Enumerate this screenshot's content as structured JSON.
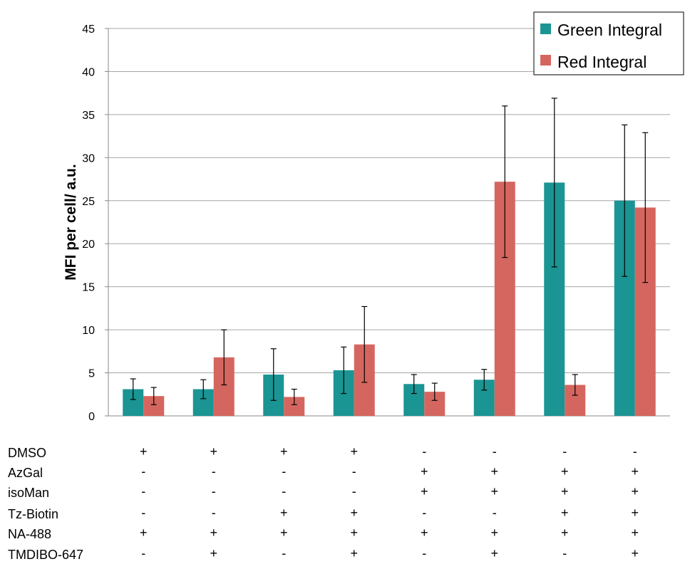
{
  "chart_data": {
    "type": "bar",
    "ylabel": "MFI per cell/ a.u.",
    "ylim": [
      0,
      45
    ],
    "yticks": [
      0,
      5,
      10,
      15,
      20,
      25,
      30,
      35,
      40,
      45
    ],
    "grid": true,
    "legend_position": "top-right",
    "groups": 8,
    "series": [
      {
        "name": "Green Integral",
        "color": "#1a9593",
        "values": [
          3.1,
          3.1,
          4.8,
          5.3,
          3.7,
          4.2,
          27.1,
          25.0
        ],
        "errors": [
          1.2,
          1.1,
          3.0,
          2.7,
          1.1,
          1.2,
          9.8,
          8.8
        ]
      },
      {
        "name": "Red Integral",
        "color": "#d5665f",
        "values": [
          2.3,
          6.8,
          2.2,
          8.3,
          2.8,
          27.2,
          3.6,
          24.2
        ],
        "errors": [
          1.0,
          3.2,
          0.9,
          4.4,
          1.0,
          8.8,
          1.2,
          8.7
        ]
      }
    ],
    "conditions": [
      {
        "label": "DMSO",
        "signs": [
          "+",
          "+",
          "+",
          "+",
          "-",
          "-",
          "-",
          "-"
        ]
      },
      {
        "label": "AzGal",
        "signs": [
          "-",
          "-",
          "-",
          "-",
          "+",
          "+",
          "+",
          "+"
        ]
      },
      {
        "label": "isoMan",
        "signs": [
          "-",
          "-",
          "-",
          "-",
          "+",
          "+",
          "+",
          "+"
        ]
      },
      {
        "label": "Tz-Biotin",
        "signs": [
          "-",
          "-",
          "+",
          "+",
          "-",
          "-",
          "+",
          "+"
        ]
      },
      {
        "label": "NA-488",
        "signs": [
          "+",
          "+",
          "+",
          "+",
          "+",
          "+",
          "+",
          "+"
        ]
      },
      {
        "label": "TMDIBO-647",
        "signs": [
          "-",
          "+",
          "-",
          "+",
          "-",
          "+",
          "-",
          "+"
        ]
      }
    ]
  }
}
